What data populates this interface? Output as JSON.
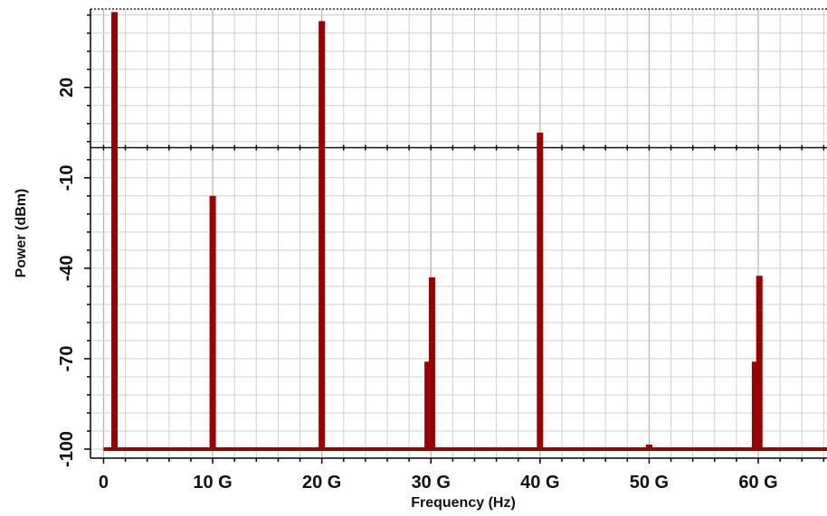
{
  "chart_data": {
    "type": "bar",
    "title": "",
    "xlabel": "Frequency (Hz)",
    "ylabel": "Power (dBm)",
    "x_unit": "GHz",
    "x_ticks": [
      {
        "value": 0,
        "label": "0"
      },
      {
        "value": 10,
        "label": "10 G"
      },
      {
        "value": 20,
        "label": "20 G"
      },
      {
        "value": 30,
        "label": "30 G"
      },
      {
        "value": 40,
        "label": "40 G"
      },
      {
        "value": 50,
        "label": "50 G"
      },
      {
        "value": 60,
        "label": "60 G"
      }
    ],
    "y_ticks": [
      {
        "value": 20,
        "label": "20"
      },
      {
        "value": -10,
        "label": "-10"
      },
      {
        "value": -40,
        "label": "-40"
      },
      {
        "value": -70,
        "label": "-70"
      },
      {
        "value": -100,
        "label": "-100"
      }
    ],
    "xlim": [
      -1.2,
      66.3
    ],
    "ylim": [
      -103,
      46
    ],
    "baseline": -100,
    "grid": true,
    "legend": "none",
    "series": [
      {
        "color": "#990000",
        "points": [
          {
            "x": 1,
            "y": 45
          },
          {
            "x": 10,
            "y": -16
          },
          {
            "x": 20,
            "y": 42
          },
          {
            "x": 29.7,
            "y": -71
          },
          {
            "x": 30.1,
            "y": -43
          },
          {
            "x": 40,
            "y": 5
          },
          {
            "x": 50,
            "y": -98.5
          },
          {
            "x": 59.7,
            "y": -71
          },
          {
            "x": 60.1,
            "y": -42.5
          }
        ]
      }
    ],
    "reference_line": {
      "y": 0,
      "color": "#000000"
    },
    "colors": {
      "line": "#990000",
      "grid": "#d0d0d0",
      "axis": "#000000"
    }
  }
}
